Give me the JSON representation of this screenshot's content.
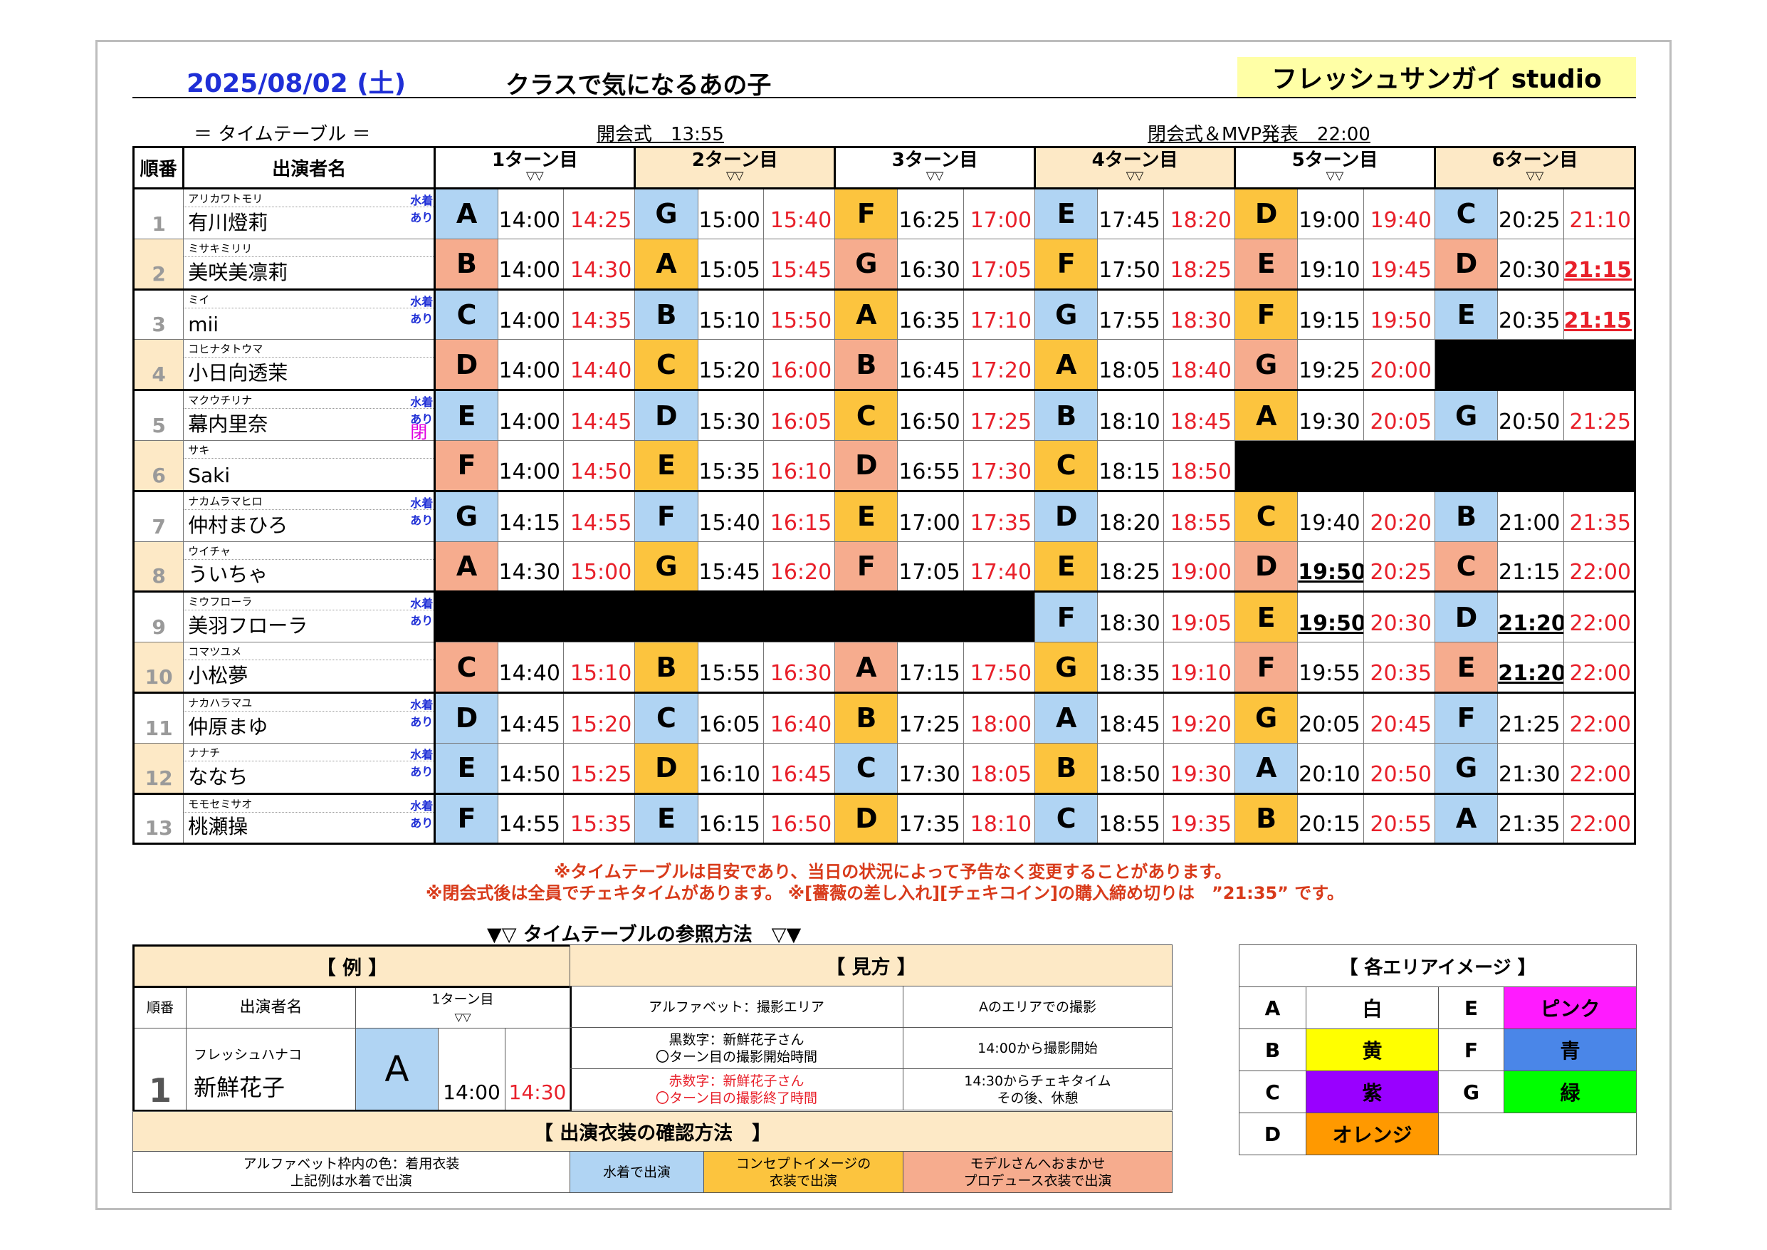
{
  "header": {
    "date": "2025/08/02 (土)",
    "title": "クラスで気になるあの子",
    "studio": "フレッシュサンガイ studio"
  },
  "subheader": {
    "timetable_label": "＝ タイムテーブル ＝",
    "opening": "開会式　13:55",
    "closing": "閉会式＆MVP発表　22:00"
  },
  "table": {
    "col_num": "順番",
    "col_name": "出演者名",
    "turns": [
      "1ターン目",
      "2ターン目",
      "3ターン目",
      "4ターン目",
      "5ターン目",
      "6ターン目"
    ],
    "turn_marker": "▽▽"
  },
  "colors": {
    "blue": "#b0d4f3",
    "orange": "#fcc43e",
    "salmon": "#f6ac8e",
    "black": "#000000",
    "red_text": "#e8202a"
  },
  "rows": [
    {
      "num": "1",
      "kana": "アリカワトモリ",
      "name": "有川燈莉",
      "mizugi": "水着あり",
      "mark": "",
      "slots": [
        {
          "l": "A",
          "c": "blue",
          "s": "14:00",
          "e": "14:25"
        },
        {
          "l": "G",
          "c": "blue",
          "s": "15:00",
          "e": "15:40"
        },
        {
          "l": "F",
          "c": "orange",
          "s": "16:25",
          "e": "17:00"
        },
        {
          "l": "E",
          "c": "blue",
          "s": "17:45",
          "e": "18:20"
        },
        {
          "l": "D",
          "c": "orange",
          "s": "19:00",
          "e": "19:40"
        },
        {
          "l": "C",
          "c": "blue",
          "s": "20:25",
          "e": "21:10"
        }
      ]
    },
    {
      "num": "2",
      "kana": "ミサキミリリ",
      "name": "美咲美凛莉",
      "mizugi": "",
      "mark": "",
      "slots": [
        {
          "l": "B",
          "c": "salmon",
          "s": "14:00",
          "e": "14:30"
        },
        {
          "l": "A",
          "c": "orange",
          "s": "15:05",
          "e": "15:45"
        },
        {
          "l": "G",
          "c": "salmon",
          "s": "16:30",
          "e": "17:05"
        },
        {
          "l": "F",
          "c": "orange",
          "s": "17:50",
          "e": "18:25"
        },
        {
          "l": "E",
          "c": "salmon",
          "s": "19:10",
          "e": "19:45"
        },
        {
          "l": "D",
          "c": "salmon",
          "s": "20:30",
          "e": "21:15",
          "eb": true
        }
      ]
    },
    {
      "num": "3",
      "kana": "ミイ",
      "name": "mii",
      "mizugi": "水着あり",
      "mark": "",
      "slots": [
        {
          "l": "C",
          "c": "blue",
          "s": "14:00",
          "e": "14:35"
        },
        {
          "l": "B",
          "c": "blue",
          "s": "15:10",
          "e": "15:50"
        },
        {
          "l": "A",
          "c": "orange",
          "s": "16:35",
          "e": "17:10"
        },
        {
          "l": "G",
          "c": "blue",
          "s": "17:55",
          "e": "18:30"
        },
        {
          "l": "F",
          "c": "orange",
          "s": "19:15",
          "e": "19:50"
        },
        {
          "l": "E",
          "c": "blue",
          "s": "20:35",
          "e": "21:15",
          "eb": true
        }
      ]
    },
    {
      "num": "4",
      "kana": "コヒナタトウマ",
      "name": "小日向透茉",
      "mizugi": "",
      "mark": "",
      "slots": [
        {
          "l": "D",
          "c": "salmon",
          "s": "14:00",
          "e": "14:40"
        },
        {
          "l": "C",
          "c": "orange",
          "s": "15:20",
          "e": "16:00"
        },
        {
          "l": "B",
          "c": "salmon",
          "s": "16:45",
          "e": "17:20"
        },
        {
          "l": "A",
          "c": "orange",
          "s": "18:05",
          "e": "18:40"
        },
        {
          "l": "G",
          "c": "salmon",
          "s": "19:25",
          "e": "20:00"
        },
        {
          "l": "",
          "c": "black",
          "s": "",
          "e": ""
        }
      ]
    },
    {
      "num": "5",
      "kana": "マクウチリナ",
      "name": "幕内里奈",
      "mizugi": "水着あり",
      "mark": "閉会式×",
      "slots": [
        {
          "l": "E",
          "c": "blue",
          "s": "14:00",
          "e": "14:45"
        },
        {
          "l": "D",
          "c": "blue",
          "s": "15:30",
          "e": "16:05"
        },
        {
          "l": "C",
          "c": "orange",
          "s": "16:50",
          "e": "17:25"
        },
        {
          "l": "B",
          "c": "blue",
          "s": "18:10",
          "e": "18:45"
        },
        {
          "l": "A",
          "c": "orange",
          "s": "19:30",
          "e": "20:05"
        },
        {
          "l": "G",
          "c": "blue",
          "s": "20:50",
          "e": "21:25"
        }
      ]
    },
    {
      "num": "6",
      "kana": "サキ",
      "name": "Saki",
      "mizugi": "",
      "mark": "",
      "slots": [
        {
          "l": "F",
          "c": "salmon",
          "s": "14:00",
          "e": "14:50"
        },
        {
          "l": "E",
          "c": "orange",
          "s": "15:35",
          "e": "16:10"
        },
        {
          "l": "D",
          "c": "salmon",
          "s": "16:55",
          "e": "17:30"
        },
        {
          "l": "C",
          "c": "orange",
          "s": "18:15",
          "e": "18:50"
        },
        {
          "l": "",
          "c": "black",
          "s": "",
          "e": ""
        },
        {
          "l": "",
          "c": "black",
          "s": "",
          "e": ""
        }
      ]
    },
    {
      "num": "7",
      "kana": "ナカムラマヒロ",
      "name": "仲村まひろ",
      "mizugi": "水着あり",
      "mark": "",
      "slots": [
        {
          "l": "G",
          "c": "blue",
          "s": "14:15",
          "e": "14:55"
        },
        {
          "l": "F",
          "c": "blue",
          "s": "15:40",
          "e": "16:15"
        },
        {
          "l": "E",
          "c": "orange",
          "s": "17:00",
          "e": "17:35"
        },
        {
          "l": "D",
          "c": "blue",
          "s": "18:20",
          "e": "18:55"
        },
        {
          "l": "C",
          "c": "orange",
          "s": "19:40",
          "e": "20:20"
        },
        {
          "l": "B",
          "c": "blue",
          "s": "21:00",
          "e": "21:35"
        }
      ]
    },
    {
      "num": "8",
      "kana": "ウイチャ",
      "name": "ういちゃ",
      "mizugi": "",
      "mark": "",
      "slots": [
        {
          "l": "A",
          "c": "salmon",
          "s": "14:30",
          "e": "15:00"
        },
        {
          "l": "G",
          "c": "orange",
          "s": "15:45",
          "e": "16:20"
        },
        {
          "l": "F",
          "c": "salmon",
          "s": "17:05",
          "e": "17:40"
        },
        {
          "l": "E",
          "c": "orange",
          "s": "18:25",
          "e": "19:00"
        },
        {
          "l": "D",
          "c": "salmon",
          "s": "19:50",
          "e": "20:25",
          "sb": true
        },
        {
          "l": "C",
          "c": "salmon",
          "s": "21:15",
          "e": "22:00"
        }
      ]
    },
    {
      "num": "9",
      "kana": "ミウフローラ",
      "name": "美羽フローラ",
      "mizugi": "水着あり",
      "mark": "",
      "slots": [
        {
          "l": "",
          "c": "black",
          "s": "",
          "e": ""
        },
        {
          "l": "",
          "c": "black",
          "s": "",
          "e": ""
        },
        {
          "l": "",
          "c": "black",
          "s": "",
          "e": ""
        },
        {
          "l": "F",
          "c": "blue",
          "s": "18:30",
          "e": "19:05"
        },
        {
          "l": "E",
          "c": "orange",
          "s": "19:50",
          "e": "20:30",
          "sb": true
        },
        {
          "l": "D",
          "c": "blue",
          "s": "21:20",
          "e": "22:00",
          "sb": true
        }
      ]
    },
    {
      "num": "10",
      "kana": "コマツユメ",
      "name": "小松夢",
      "mizugi": "",
      "mark": "",
      "slots": [
        {
          "l": "C",
          "c": "salmon",
          "s": "14:40",
          "e": "15:10"
        },
        {
          "l": "B",
          "c": "orange",
          "s": "15:55",
          "e": "16:30"
        },
        {
          "l": "A",
          "c": "salmon",
          "s": "17:15",
          "e": "17:50"
        },
        {
          "l": "G",
          "c": "orange",
          "s": "18:35",
          "e": "19:10"
        },
        {
          "l": "F",
          "c": "salmon",
          "s": "19:55",
          "e": "20:35"
        },
        {
          "l": "E",
          "c": "salmon",
          "s": "21:20",
          "e": "22:00",
          "sb": true
        }
      ]
    },
    {
      "num": "11",
      "kana": "ナカハラマユ",
      "name": "仲原まゆ",
      "mizugi": "水着あり",
      "mark": "",
      "slots": [
        {
          "l": "D",
          "c": "blue",
          "s": "14:45",
          "e": "15:20"
        },
        {
          "l": "C",
          "c": "blue",
          "s": "16:05",
          "e": "16:40"
        },
        {
          "l": "B",
          "c": "orange",
          "s": "17:25",
          "e": "18:00"
        },
        {
          "l": "A",
          "c": "blue",
          "s": "18:45",
          "e": "19:20"
        },
        {
          "l": "G",
          "c": "orange",
          "s": "20:05",
          "e": "20:45"
        },
        {
          "l": "F",
          "c": "blue",
          "s": "21:25",
          "e": "22:00"
        }
      ]
    },
    {
      "num": "12",
      "kana": "ナナチ",
      "name": "ななち",
      "mizugi": "水着あり",
      "mark": "",
      "slots": [
        {
          "l": "E",
          "c": "blue",
          "s": "14:50",
          "e": "15:25"
        },
        {
          "l": "D",
          "c": "orange",
          "s": "16:10",
          "e": "16:45"
        },
        {
          "l": "C",
          "c": "blue",
          "s": "17:30",
          "e": "18:05"
        },
        {
          "l": "B",
          "c": "orange",
          "s": "18:50",
          "e": "19:30"
        },
        {
          "l": "A",
          "c": "blue",
          "s": "20:10",
          "e": "20:50"
        },
        {
          "l": "G",
          "c": "blue",
          "s": "21:30",
          "e": "22:00"
        }
      ]
    },
    {
      "num": "13",
      "kana": "モモセミサオ",
      "name": "桃瀬操",
      "mizugi": "水着あり",
      "mark": "",
      "slots": [
        {
          "l": "F",
          "c": "blue",
          "s": "14:55",
          "e": "15:35"
        },
        {
          "l": "E",
          "c": "blue",
          "s": "16:15",
          "e": "16:50"
        },
        {
          "l": "D",
          "c": "orange",
          "s": "17:35",
          "e": "18:10"
        },
        {
          "l": "C",
          "c": "blue",
          "s": "18:55",
          "e": "19:35"
        },
        {
          "l": "B",
          "c": "orange",
          "s": "20:15",
          "e": "20:55"
        },
        {
          "l": "A",
          "c": "blue",
          "s": "21:35",
          "e": "22:00"
        }
      ]
    }
  ],
  "notes": {
    "line1": "※タイムテーブルは目安であり、当日の状況によって予告なく変更することがあります。",
    "line2": "※閉会式後は全員でチェキタイムがあります。 ※[薔薇の差し入れ][チェキコイン]の購入締め切りは　”21:35” です。"
  },
  "howto": {
    "title": "▼▽ タイムテーブルの参照方法　▽▼",
    "example_header": "【 例 】",
    "col_num": "順番",
    "col_name": "出演者名",
    "turn": "1ターン目",
    "turn_marker": "▽▽",
    "num": "1",
    "kana": "フレッシュハナコ",
    "name": "新鮮花子",
    "letter": "A",
    "start": "14:00",
    "end": "14:30",
    "view_header": "【 見方 】",
    "v1a": "アルファベット：撮影エリア",
    "v1b": "Aのエリアでの撮影",
    "v2a1": "黒数字：新鮮花子さん",
    "v2a2": "〇ターン目の撮影開始時間",
    "v2b": "14:00から撮影開始",
    "v3a1": "赤数字：新鮮花子さん",
    "v3a2": "〇ターン目の撮影終了時間",
    "v3b1": "14:30からチェキタイム",
    "v3b2": "その後、休憩",
    "costume_header": "【 出演衣装の確認方法　】",
    "c1a": "アルファベット枠内の色：着用衣装",
    "c1b": "上記例は水着で出演",
    "c2": "水着で出演",
    "c3a": "コンセプトイメージの",
    "c3b": "衣装で出演",
    "c4a": "モデルさんへおまかせ",
    "c4b": "プロデュース衣装で出演"
  },
  "areas": {
    "header": "【 各エリアイメージ 】",
    "items": [
      {
        "key": "A",
        "label": "白",
        "color": "#ffffff"
      },
      {
        "key": "E",
        "label": "ピンク",
        "color": "#ff1bff"
      },
      {
        "key": "B",
        "label": "黄",
        "color": "#ffff00"
      },
      {
        "key": "F",
        "label": "青",
        "color": "#4a86e8"
      },
      {
        "key": "C",
        "label": "紫",
        "color": "#9900ff"
      },
      {
        "key": "G",
        "label": "緑",
        "color": "#00ff00"
      },
      {
        "key": "D",
        "label": "オレンジ",
        "color": "#ff9900"
      }
    ]
  }
}
